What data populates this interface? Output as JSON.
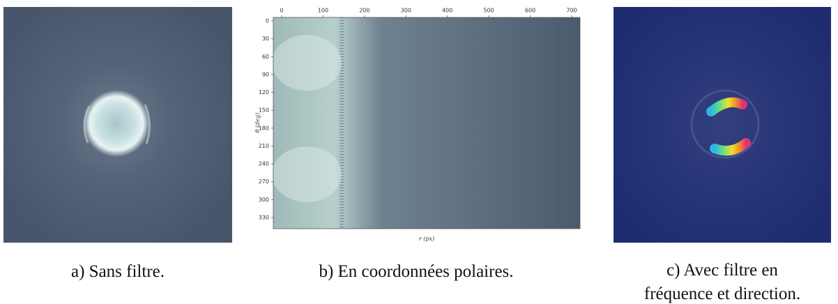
{
  "panels": [
    {
      "caption": "a) Sans filtre."
    },
    {
      "caption": "b) En coordonnées polaires.",
      "xticks": [
        0,
        100,
        200,
        300,
        400,
        500,
        600,
        700
      ],
      "yticks": [
        0,
        30,
        60,
        90,
        120,
        150,
        180,
        210,
        240,
        270,
        300,
        330
      ],
      "xlabel": "r (px)",
      "ylabel": "θ (deg)"
    },
    {
      "caption_lines": [
        "c) Avec filtre en",
        "fréquence et direction."
      ]
    }
  ]
}
